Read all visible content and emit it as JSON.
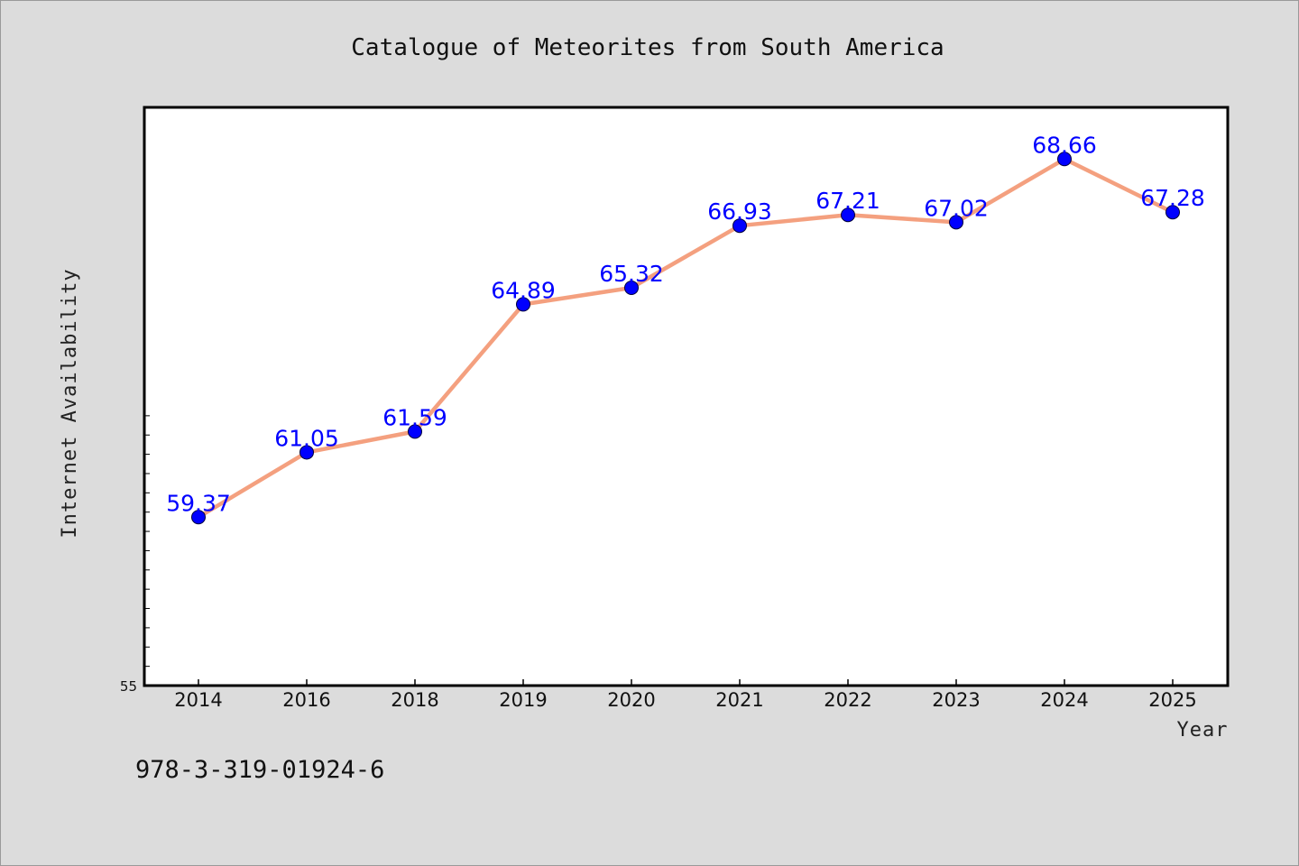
{
  "chart_data": {
    "type": "line",
    "title": "Catalogue of Meteorites from South America",
    "xlabel": "Year",
    "ylabel": "Internet Availability",
    "categories": [
      "2014",
      "2016",
      "2018",
      "2019",
      "2020",
      "2021",
      "2022",
      "2023",
      "2024",
      "2025"
    ],
    "series": [
      {
        "values": [
          59.37,
          61.05,
          61.59,
          64.89,
          65.32,
          66.93,
          67.21,
          67.02,
          68.66,
          67.28
        ]
      }
    ],
    "data_labels": [
      "59.37",
      "61.05",
      "61.59",
      "64.89",
      "65.32",
      "66.93",
      "67.21",
      "67.02",
      "68.66",
      "67.28"
    ],
    "ylim": [
      55,
      70
    ],
    "y_tick_labels": [
      "55"
    ],
    "grid": false,
    "line_color": "#f4a07f",
    "marker_color": "#0000ff",
    "label_color": "#0000ff",
    "plot_background": "#ffffff",
    "figure_background": "#dcdcdc"
  },
  "footer": {
    "isbn": "978-3-319-01924-6"
  }
}
